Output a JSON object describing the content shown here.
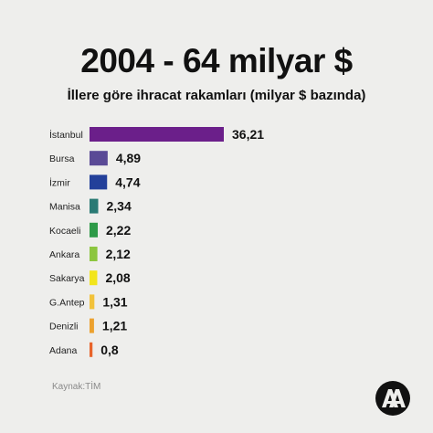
{
  "header": {
    "title": "2004 - 64 milyar $",
    "subtitle": "İllere göre ihracat rakamları (milyar $ bazında)"
  },
  "source": "Kaynak:TİM",
  "logo": {
    "name": "aa-logo",
    "text": "AA"
  },
  "chart_data": {
    "type": "bar",
    "orientation": "horizontal",
    "categories": [
      "İstanbul",
      "Bursa",
      "İzmir",
      "Manisa",
      "Kocaeli",
      "Ankara",
      "Sakarya",
      "G.Antep",
      "Denizli",
      "Adana"
    ],
    "values": [
      36.21,
      4.89,
      4.74,
      2.34,
      2.22,
      2.12,
      2.08,
      1.31,
      1.21,
      0.8
    ],
    "value_labels": [
      "36,21",
      "4,89",
      "4,74",
      "2,34",
      "2,22",
      "2,12",
      "2,08",
      "1,31",
      "1,21",
      "0,8"
    ],
    "colors": [
      "#6b1f8a",
      "#5a4a96",
      "#23409a",
      "#2a7a74",
      "#2e9a48",
      "#8cc63f",
      "#f2e51c",
      "#f2c23a",
      "#eca12e",
      "#e8642a"
    ],
    "legend": "none",
    "grid": false
  }
}
